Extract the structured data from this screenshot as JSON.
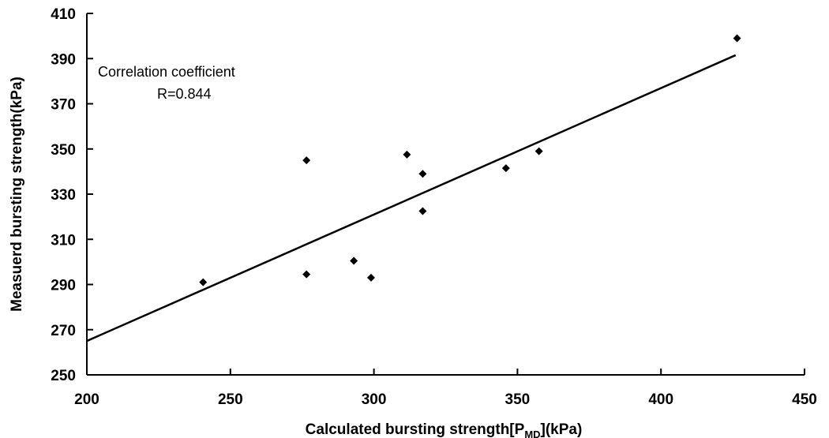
{
  "chart_data": {
    "type": "scatter",
    "xlabel": "Calculated bursting  strength[P",
    "xlabel_sub": "MD",
    "xlabel_tail": "](kPa)",
    "ylabel": "Measuerd bursting strength(kPa)",
    "xlim": [
      200,
      450
    ],
    "ylim": [
      250,
      410
    ],
    "x_ticks": [
      200,
      250,
      300,
      350,
      400,
      450
    ],
    "y_ticks": [
      250,
      270,
      290,
      310,
      330,
      350,
      370,
      390,
      410
    ],
    "grid": false,
    "series": [
      {
        "points": [
          {
            "x": 240.5,
            "y": 291
          },
          {
            "x": 276.5,
            "y": 345
          },
          {
            "x": 276.5,
            "y": 294.5
          },
          {
            "x": 293,
            "y": 300.5
          },
          {
            "x": 299,
            "y": 293
          },
          {
            "x": 311.5,
            "y": 347.5
          },
          {
            "x": 317,
            "y": 339
          },
          {
            "x": 317,
            "y": 322.5
          },
          {
            "x": 346,
            "y": 341.5
          },
          {
            "x": 357.5,
            "y": 349
          },
          {
            "x": 426.5,
            "y": 399
          }
        ],
        "marker": "diamond",
        "color": "#000000"
      }
    ],
    "trendline": {
      "type": "linear",
      "from": {
        "x": 200,
        "y": 265
      },
      "to": {
        "x": 426,
        "y": 391.5
      }
    },
    "annotation": {
      "line1": "Correlation coefficient",
      "line2": "R=0.844"
    }
  }
}
